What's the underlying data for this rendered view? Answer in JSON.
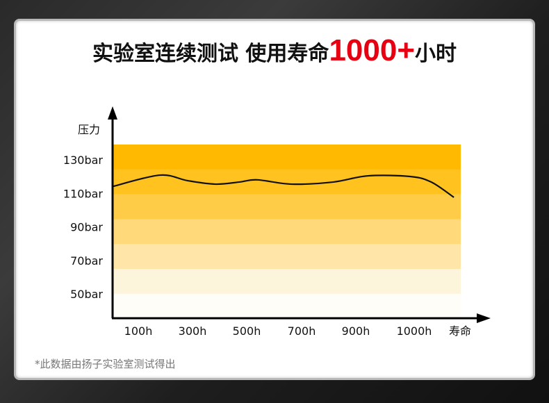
{
  "title": {
    "part1": "实验室连续测试 使用寿命",
    "highlight": "1000+",
    "part2": "小时"
  },
  "footnote": "*此数据由扬子实验室测试得出",
  "colors": {
    "highlight": "#e60012",
    "bands": [
      "#ffb900",
      "#ffc21f",
      "#ffcc47",
      "#ffd97a",
      "#ffe6a8",
      "#fdf4dc",
      "#fffdf8"
    ]
  },
  "chart_data": {
    "type": "line",
    "ylabel": "压力",
    "xlabel": "寿命",
    "x_ticks": [
      "100h",
      "300h",
      "500h",
      "700h",
      "900h",
      "1000h"
    ],
    "y_ticks": [
      "130bar",
      "110bar",
      "90bar",
      "70bar",
      "50bar"
    ],
    "grid": false,
    "series": [
      {
        "x": [
          5,
          179,
          282,
          385,
          474,
          538,
          665,
          818,
          921,
          993,
          1029,
          1068
        ],
        "y": [
          114,
          120.8,
          117.5,
          115.4,
          116.7,
          118,
          115.4,
          116.7,
          120.4,
          120,
          116.7,
          107.5
        ]
      }
    ]
  }
}
